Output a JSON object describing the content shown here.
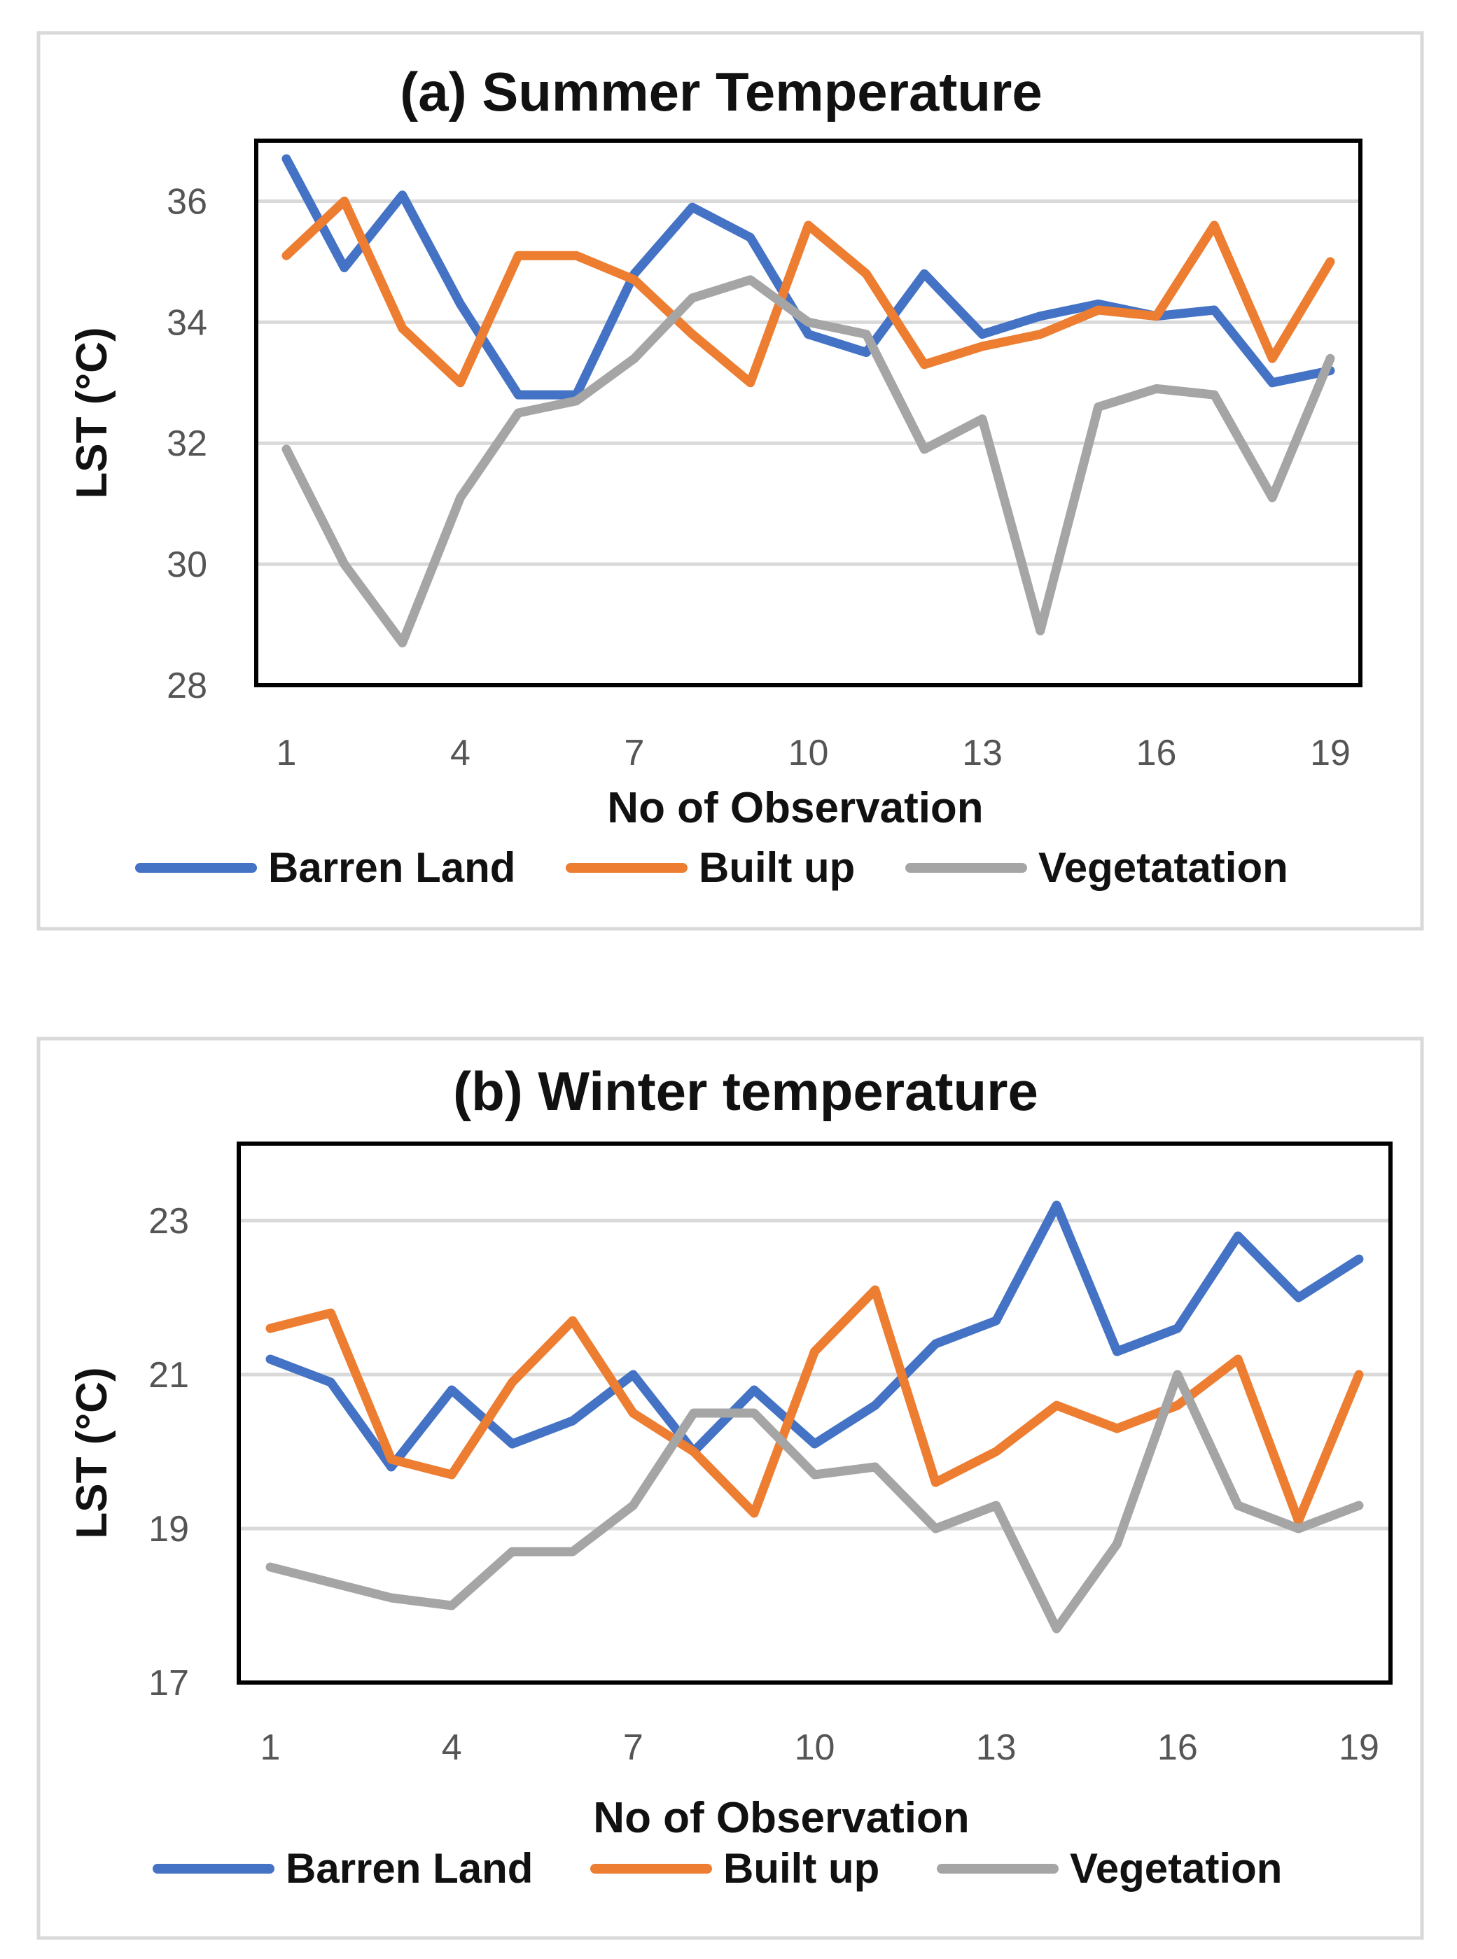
{
  "colors": {
    "barren": "#4472c4",
    "builtup": "#ed7d31",
    "vegetation": "#a5a5a5"
  },
  "chart_data": [
    {
      "type": "line",
      "title": "(a) Summer Temperature",
      "xlabel": "No of Observation",
      "ylabel": "LST (°C)",
      "ylim": [
        28,
        37
      ],
      "yticks": [
        "28",
        "30",
        "32",
        "34",
        "36"
      ],
      "xticks": [
        "1",
        "4",
        "7",
        "10",
        "13",
        "16",
        "19"
      ],
      "x": [
        1,
        2,
        3,
        4,
        5,
        6,
        7,
        8,
        9,
        10,
        11,
        12,
        13,
        14,
        15,
        16,
        17,
        18,
        19
      ],
      "series": [
        {
          "name": "Barren Land",
          "color": "#4472c4",
          "values": [
            36.7,
            34.9,
            36.1,
            34.3,
            32.8,
            32.8,
            34.8,
            35.9,
            35.4,
            33.8,
            33.5,
            34.8,
            33.8,
            34.1,
            34.3,
            34.1,
            34.2,
            33.0,
            33.2
          ]
        },
        {
          "name": "Built up",
          "color": "#ed7d31",
          "values": [
            35.1,
            36.0,
            33.9,
            33.0,
            35.1,
            35.1,
            34.7,
            33.8,
            33.0,
            35.6,
            34.8,
            33.3,
            33.6,
            33.8,
            34.2,
            34.1,
            35.6,
            33.4,
            35.0
          ]
        },
        {
          "name": "Vegetatation",
          "color": "#a5a5a5",
          "values": [
            31.9,
            30.0,
            28.7,
            31.1,
            32.5,
            32.7,
            33.4,
            34.4,
            34.7,
            34.0,
            33.8,
            31.9,
            32.4,
            28.9,
            32.6,
            32.9,
            32.8,
            31.1,
            33.4
          ]
        }
      ],
      "legend": [
        "Barren Land",
        "Built up",
        "Vegetatation"
      ]
    },
    {
      "type": "line",
      "title": "(b) Winter temperature",
      "xlabel": "No of Observation",
      "ylabel": "LST (°C)",
      "ylim": [
        17,
        24
      ],
      "yticks": [
        "17",
        "19",
        "21",
        "23"
      ],
      "xticks": [
        "1",
        "4",
        "7",
        "10",
        "13",
        "16",
        "19"
      ],
      "x": [
        1,
        2,
        3,
        4,
        5,
        6,
        7,
        8,
        9,
        10,
        11,
        12,
        13,
        14,
        15,
        16,
        17,
        18,
        19
      ],
      "series": [
        {
          "name": "Barren Land",
          "color": "#4472c4",
          "values": [
            21.2,
            20.9,
            19.8,
            20.8,
            20.1,
            20.4,
            21.0,
            20.0,
            20.8,
            20.1,
            20.6,
            21.4,
            21.7,
            23.2,
            21.3,
            21.6,
            22.8,
            22.0,
            22.5
          ]
        },
        {
          "name": "Built up",
          "color": "#ed7d31",
          "values": [
            21.6,
            21.8,
            19.9,
            19.7,
            20.9,
            21.7,
            20.5,
            20.0,
            19.2,
            21.3,
            22.1,
            19.6,
            20.0,
            20.6,
            20.3,
            20.6,
            21.2,
            19.1,
            21.0
          ]
        },
        {
          "name": "Vegetation",
          "color": "#a5a5a5",
          "values": [
            18.5,
            18.3,
            18.1,
            18.0,
            18.7,
            18.7,
            19.3,
            20.5,
            20.5,
            19.7,
            19.8,
            19.0,
            19.3,
            17.7,
            18.8,
            21.0,
            19.3,
            19.0,
            19.3
          ]
        }
      ],
      "legend": [
        "Barren Land",
        "Built up",
        "Vegetation"
      ]
    }
  ]
}
